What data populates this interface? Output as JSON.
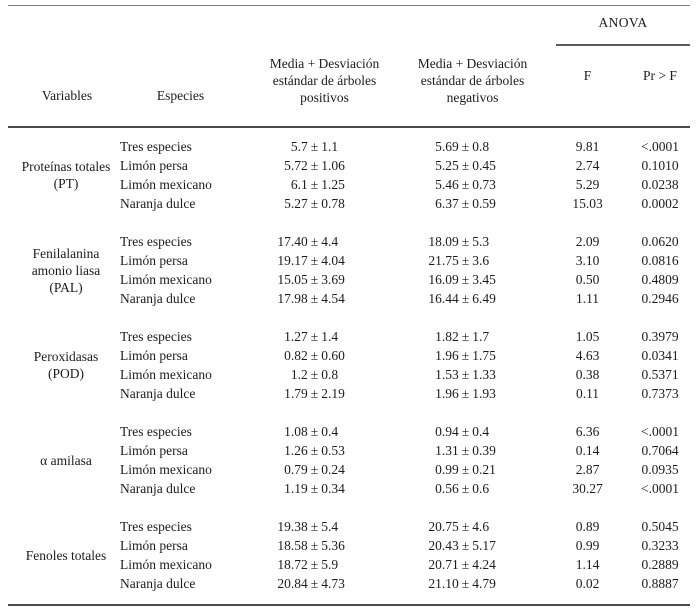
{
  "table": {
    "plus_minus": "±",
    "header": {
      "anova": "ANOVA",
      "variables": "Variables",
      "especies": "Especies",
      "positivos": "Media + Desviación estándar de árboles positivos",
      "negativos": "Media + Desviación estándar de árboles negativos",
      "f": "F",
      "prf": "Pr > F"
    },
    "groups": [
      {
        "variable_lines": [
          "Proteínas totales",
          "(PT)"
        ],
        "rows": [
          {
            "especie": "Tres especies",
            "pos_mean": "5.7",
            "pos_sd": "1.1",
            "neg_mean": "5.69",
            "neg_sd": "0.8",
            "f": "9.81",
            "prf": "<.0001"
          },
          {
            "especie": "Limón persa",
            "pos_mean": "5.72",
            "pos_sd": "1.06",
            "neg_mean": "5.25",
            "neg_sd": "0.45",
            "f": "2.74",
            "prf": "0.1010"
          },
          {
            "especie": "Limón mexicano",
            "pos_mean": "6.1",
            "pos_sd": "1.25",
            "neg_mean": "5.46",
            "neg_sd": "0.73",
            "f": "5.29",
            "prf": "0.0238"
          },
          {
            "especie": "Naranja dulce",
            "pos_mean": "5.27",
            "pos_sd": "0.78",
            "neg_mean": "6.37",
            "neg_sd": "0.59",
            "f": "15.03",
            "prf": "0.0002"
          }
        ]
      },
      {
        "variable_lines": [
          "Fenilalanina",
          "amonio liasa",
          "(PAL)"
        ],
        "rows": [
          {
            "especie": "Tres especies",
            "pos_mean": "17.40",
            "pos_sd": "4.4",
            "neg_mean": "18.09",
            "neg_sd": "5.3",
            "f": "2.09",
            "prf": "0.0620"
          },
          {
            "especie": "Limón persa",
            "pos_mean": "19.17",
            "pos_sd": "4.04",
            "neg_mean": "21.75",
            "neg_sd": "3.6",
            "f": "3.10",
            "prf": "0.0816"
          },
          {
            "especie": "Limón mexicano",
            "pos_mean": "15.05",
            "pos_sd": "3.69",
            "neg_mean": "16.09",
            "neg_sd": "3.45",
            "f": "0.50",
            "prf": "0.4809"
          },
          {
            "especie": "Naranja dulce",
            "pos_mean": "17.98",
            "pos_sd": "4.54",
            "neg_mean": "16.44",
            "neg_sd": "6.49",
            "f": "1.11",
            "prf": "0.2946"
          }
        ]
      },
      {
        "variable_lines": [
          "Peroxidasas",
          "(POD)"
        ],
        "rows": [
          {
            "especie": "Tres especies",
            "pos_mean": "1.27",
            "pos_sd": "1.4",
            "neg_mean": "1.82",
            "neg_sd": "1.7",
            "f": "1.05",
            "prf": "0.3979"
          },
          {
            "especie": "Limón persa",
            "pos_mean": "0.82",
            "pos_sd": "0.60",
            "neg_mean": "1.96",
            "neg_sd": "1.75",
            "f": "4.63",
            "prf": "0.0341"
          },
          {
            "especie": "Limón mexicano",
            "pos_mean": "1.2",
            "pos_sd": "0.8",
            "neg_mean": "1.53",
            "neg_sd": "1.33",
            "f": "0.38",
            "prf": "0.5371"
          },
          {
            "especie": "Naranja dulce",
            "pos_mean": "1.79",
            "pos_sd": "2.19",
            "neg_mean": "1.96",
            "neg_sd": "1.93",
            "f": "0.11",
            "prf": "0.7373"
          }
        ]
      },
      {
        "variable_lines": [
          "α amilasa"
        ],
        "rows": [
          {
            "especie": "Tres especies",
            "pos_mean": "1.08",
            "pos_sd": "0.4",
            "neg_mean": "0.94",
            "neg_sd": "0.4",
            "f": "6.36",
            "prf": "<.0001"
          },
          {
            "especie": "Limón persa",
            "pos_mean": "1.26",
            "pos_sd": "0.53",
            "neg_mean": "1.31",
            "neg_sd": "0.39",
            "f": "0.14",
            "prf": "0.7064"
          },
          {
            "especie": "Limón mexicano",
            "pos_mean": "0.79",
            "pos_sd": "0.24",
            "neg_mean": "0.99",
            "neg_sd": "0.21",
            "f": "2.87",
            "prf": "0.0935"
          },
          {
            "especie": "Naranja dulce",
            "pos_mean": "1.19",
            "pos_sd": "0.34",
            "neg_mean": "0.56",
            "neg_sd": "0.6",
            "f": "30.27",
            "prf": "<.0001"
          }
        ]
      },
      {
        "variable_lines": [
          "Fenoles totales"
        ],
        "rows": [
          {
            "especie": "Tres especies",
            "pos_mean": "19.38",
            "pos_sd": "5.4",
            "neg_mean": "20.75",
            "neg_sd": "4.6",
            "f": "0.89",
            "prf": "0.5045"
          },
          {
            "especie": "Limón persa",
            "pos_mean": "18.58",
            "pos_sd": "5.36",
            "neg_mean": "20.43",
            "neg_sd": "5.17",
            "f": "0.99",
            "prf": "0.3233"
          },
          {
            "especie": "Limón mexicano",
            "pos_mean": "18.72",
            "pos_sd": "5.9",
            "neg_mean": "20.71",
            "neg_sd": "4.24",
            "f": "1.14",
            "prf": "0.2889"
          },
          {
            "especie": "Naranja dulce",
            "pos_mean": "20.84",
            "pos_sd": "4.73",
            "neg_mean": "21.10",
            "neg_sd": "4.79",
            "f": "0.02",
            "prf": "0.8887"
          }
        ]
      }
    ]
  }
}
